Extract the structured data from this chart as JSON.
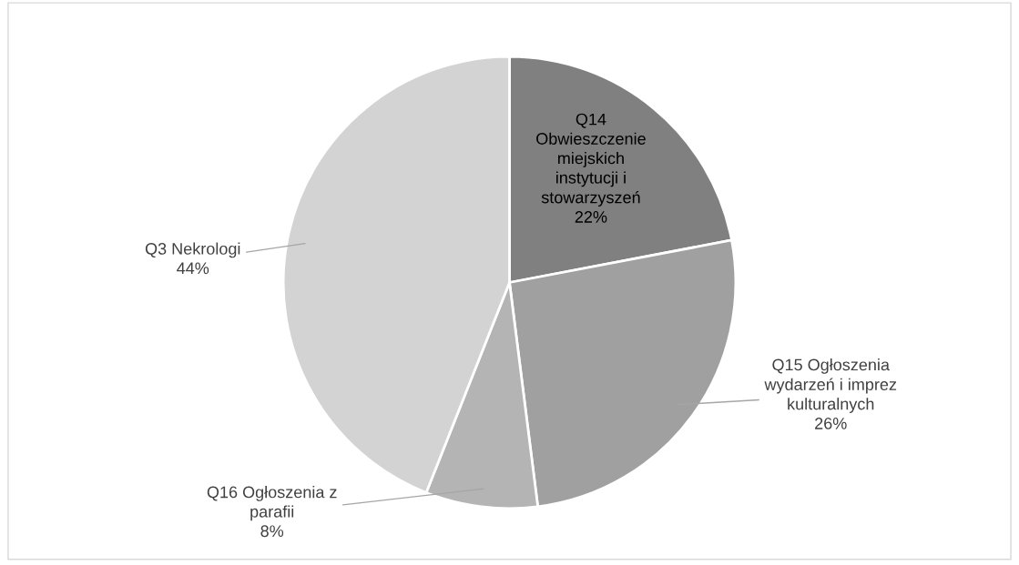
{
  "chart_data": {
    "type": "pie",
    "categories": [
      "Q14 Obwieszczenie miejskich instytucji i stowarzyszeń",
      "Q15 Ogłoszenia wydarzeń i imprez kulturalnych",
      "Q16 Ogłoszenia z parafii",
      "Q3 Nekrologi"
    ],
    "values": [
      22,
      26,
      8,
      44
    ],
    "colors": [
      "#808080",
      "#a0a0a0",
      "#b4b4b4",
      "#d3d3d3"
    ],
    "value_labels": [
      "22%",
      "26%",
      "8%",
      "44%"
    ],
    "legend": false
  }
}
